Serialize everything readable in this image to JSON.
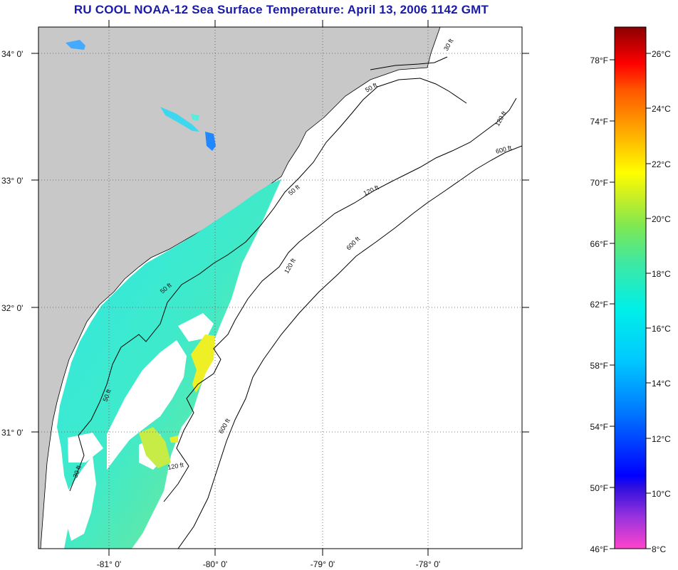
{
  "title": "RU COOL  NOAA-12  Sea Surface Temperature:  April 13, 2006 1142 GMT",
  "map": {
    "lat_labels": [
      "34° 0'",
      "33° 0'",
      "32° 0'",
      "31° 0'"
    ],
    "lon_labels": [
      "-81° 0'",
      "-80° 0'",
      "-79° 0'",
      "-78° 0'"
    ],
    "contour_labels": [
      "50 ft",
      "50 ft",
      "50 ft",
      "50 ft",
      "120 ft",
      "120 ft",
      "120 ft",
      "120 ft",
      "600 ft",
      "600 ft",
      "600 ft",
      "30 ft",
      "30 ft"
    ]
  },
  "colorbar": {
    "fahrenheit": [
      "78°F",
      "74°F",
      "70°F",
      "66°F",
      "62°F",
      "58°F",
      "54°F",
      "50°F",
      "46°F"
    ],
    "celsius": [
      "26°C",
      "24°C",
      "22°C",
      "20°C",
      "18°C",
      "16°C",
      "14°C",
      "12°C",
      "10°C",
      "8°C"
    ]
  },
  "colors": {
    "land": "#c8c8c8",
    "title": "#1a1aa8",
    "sst_cool": "#38ecd8",
    "sst_mid": "#6ae89a",
    "sst_warm": "#f0f020"
  }
}
